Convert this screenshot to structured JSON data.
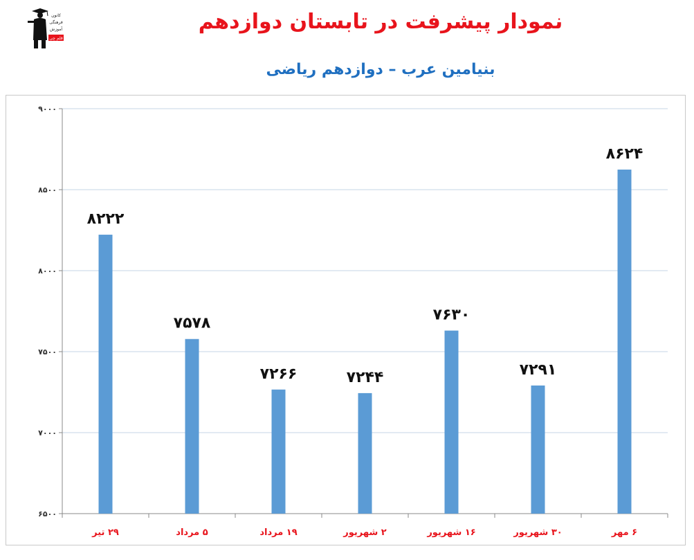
{
  "title": "نمودار پیشرفت در تابستان دوازدهم",
  "subtitle": "بنیامین عرب – دوازدهم ریاضی",
  "logo": {
    "icon": "teacher-logo-icon",
    "lines": [
      "کانون",
      "فرهنگی",
      "آموزش",
      "قلم چی"
    ],
    "brand_color": "#e8141c"
  },
  "chart_data": {
    "type": "bar",
    "categories": [
      "۲۹ تیر",
      "۵ مرداد",
      "۱۹ مرداد",
      "۲ شهریور",
      "۱۶ شهریور",
      "۳۰ شهریور",
      "۶ مهر"
    ],
    "values": [
      8222,
      7578,
      7266,
      7244,
      7630,
      7291,
      8624
    ],
    "value_labels": [
      "۸۲۲۲",
      "۷۵۷۸",
      "۷۲۶۶",
      "۷۲۴۴",
      "۷۶۳۰",
      "۷۲۹۱",
      "۸۶۲۴"
    ],
    "ylim": [
      6500,
      9000
    ],
    "yticks": [
      6500,
      7000,
      7500,
      8000,
      8500,
      9000
    ],
    "ytick_labels": [
      "۶۵۰۰",
      "۷۰۰۰",
      "۷۵۰۰",
      "۸۰۰۰",
      "۸۵۰۰",
      "۹۰۰۰"
    ],
    "grid": true,
    "legend": "none",
    "bar_color": "#5b9bd5",
    "category_label_color": "#e8141c",
    "grid_color": "#c5d5e6"
  }
}
